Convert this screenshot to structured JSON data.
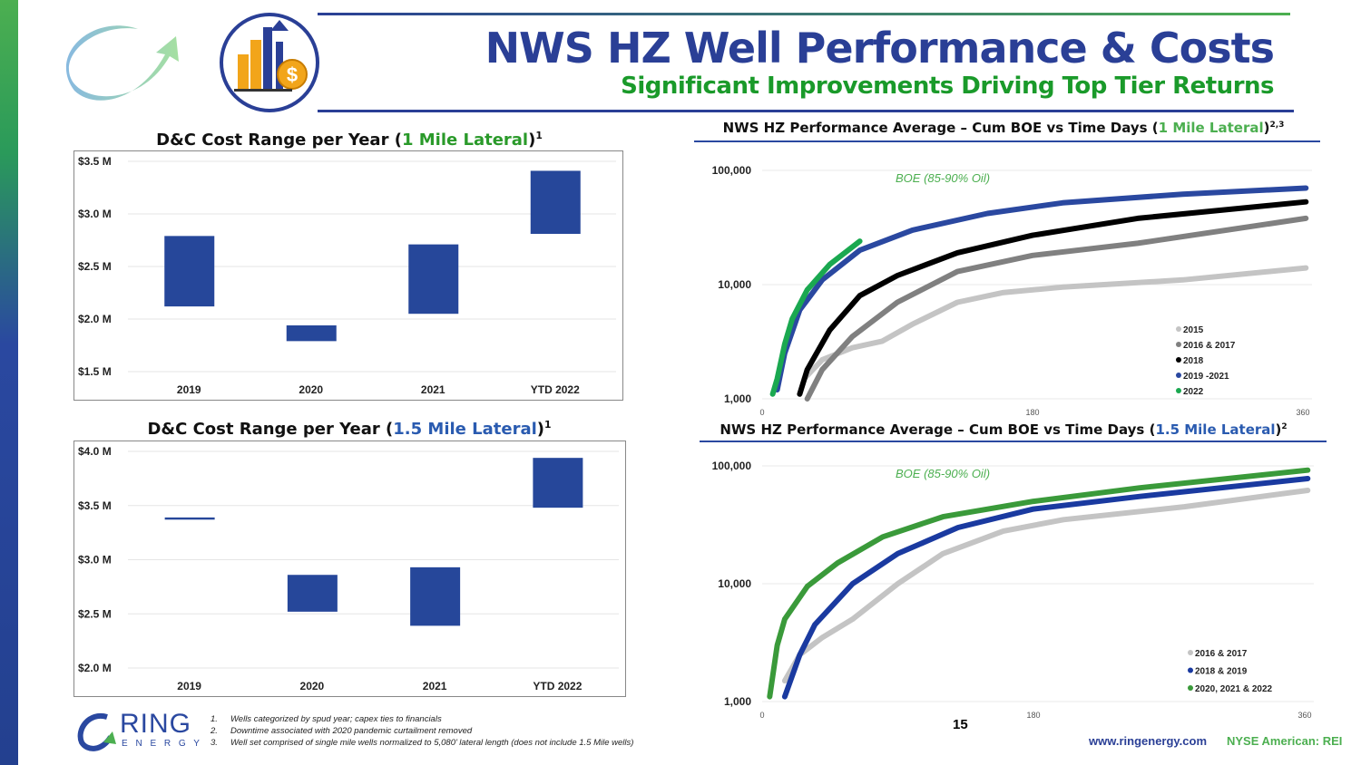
{
  "header": {
    "title": "NWS HZ Well Performance & Costs",
    "subtitle": "Significant Improvements Driving Top Tier Returns"
  },
  "colors": {
    "bar": "#26479a",
    "title": "#2a3f96",
    "green": "#1a9a2a"
  },
  "chart_data": [
    {
      "type": "bar",
      "subtype": "floating-range",
      "title": "D&C Cost Range per Year (1 Mile Lateral)1",
      "title_pre": "D&C Cost Range per Year (",
      "title_hl": "1 Mile Lateral",
      "title_post": ")",
      "title_sup": "1",
      "categories": [
        "2019",
        "2020",
        "2021",
        "YTD 2022"
      ],
      "ranges": [
        [
          2.12,
          2.79
        ],
        [
          1.79,
          1.94
        ],
        [
          2.05,
          2.71
        ],
        [
          2.81,
          3.41
        ]
      ],
      "ylim": [
        1.5,
        3.5
      ],
      "yticks": [
        "$1.5 M",
        "$2.0 M",
        "$2.5 M",
        "$3.0 M",
        "$3.5 M"
      ],
      "grid": true
    },
    {
      "type": "bar",
      "subtype": "floating-range",
      "title": "D&C Cost Range per Year (1.5 Mile Lateral)1",
      "title_pre": "D&C Cost Range per Year (",
      "title_hl": "1.5 Mile Lateral",
      "title_post": ")",
      "title_sup": "1",
      "categories": [
        "2019",
        "2020",
        "2021",
        "YTD 2022"
      ],
      "ranges": [
        [
          3.37,
          3.39
        ],
        [
          2.52,
          2.86
        ],
        [
          2.39,
          2.93
        ],
        [
          3.48,
          3.94
        ]
      ],
      "ylim": [
        2.0,
        4.0
      ],
      "yticks": [
        "$2.0 M",
        "$2.5 M",
        "$3.0 M",
        "$3.5 M",
        "$4.0 M"
      ],
      "grid": true
    },
    {
      "type": "line",
      "scale": "log",
      "title_pre": "NWS HZ Performance Average – Cum BOE vs Time Days (",
      "title_hl": "1 Mile Lateral",
      "title_post": ")",
      "title_sup": "2,3",
      "annotation": "BOE (85-90% Oil)",
      "xlim": [
        0,
        360
      ],
      "xticks": [
        "0",
        "180",
        "360"
      ],
      "ylim": [
        1000,
        100000
      ],
      "yticks": [
        "1,000",
        "10,000",
        "100,000"
      ],
      "legend": "bottom-right",
      "grid": true,
      "series": [
        {
          "name": "2015",
          "color": "#c4c4c4",
          "points": [
            [
              28,
              1500
            ],
            [
              40,
              2200
            ],
            [
              60,
              2800
            ],
            [
              80,
              3200
            ],
            [
              100,
              4500
            ],
            [
              130,
              7000
            ],
            [
              160,
              8500
            ],
            [
              200,
              9500
            ],
            [
              280,
              11000
            ],
            [
              362,
              14000
            ]
          ]
        },
        {
          "name": "2016 & 2017",
          "color": "#808080",
          "points": [
            [
              30,
              1000
            ],
            [
              40,
              1800
            ],
            [
              60,
              3500
            ],
            [
              90,
              7000
            ],
            [
              130,
              13000
            ],
            [
              180,
              18000
            ],
            [
              250,
              23000
            ],
            [
              362,
              38000
            ]
          ]
        },
        {
          "name": "2018",
          "color": "#000000",
          "points": [
            [
              25,
              1100
            ],
            [
              30,
              1800
            ],
            [
              45,
              4000
            ],
            [
              65,
              8000
            ],
            [
              90,
              12000
            ],
            [
              130,
              19000
            ],
            [
              180,
              27000
            ],
            [
              250,
              38000
            ],
            [
              362,
              53000
            ]
          ]
        },
        {
          "name": "2019 -2021",
          "color": "#2a48a0",
          "points": [
            [
              10,
              1200
            ],
            [
              15,
              2500
            ],
            [
              25,
              6000
            ],
            [
              40,
              11000
            ],
            [
              65,
              20000
            ],
            [
              100,
              30000
            ],
            [
              150,
              42000
            ],
            [
              200,
              52000
            ],
            [
              280,
              62000
            ],
            [
              362,
              70000
            ]
          ]
        },
        {
          "name": "2022",
          "color": "#1aa850",
          "points": [
            [
              7,
              1100
            ],
            [
              10,
              1500
            ],
            [
              15,
              3000
            ],
            [
              20,
              5000
            ],
            [
              30,
              9000
            ],
            [
              45,
              15000
            ],
            [
              65,
              24000
            ]
          ]
        }
      ]
    },
    {
      "type": "line",
      "scale": "log",
      "title_pre": "NWS HZ Performance Average – Cum BOE vs Time Days (",
      "title_hl": "1.5 Mile Lateral",
      "title_post": ")",
      "title_sup": "2",
      "annotation": "BOE (85-90% Oil)",
      "xlim": [
        0,
        360
      ],
      "xticks": [
        "0",
        "180",
        "360"
      ],
      "ylim": [
        1000,
        100000
      ],
      "yticks": [
        "1,000",
        "10,000",
        "100,000"
      ],
      "legend": "bottom-right",
      "grid": true,
      "series": [
        {
          "name": "2016 & 2017",
          "color": "#c4c4c4",
          "points": [
            [
              15,
              1500
            ],
            [
              25,
              2500
            ],
            [
              40,
              3500
            ],
            [
              60,
              5000
            ],
            [
              90,
              10000
            ],
            [
              120,
              18000
            ],
            [
              160,
              28000
            ],
            [
              200,
              35000
            ],
            [
              280,
              45000
            ],
            [
              362,
              62000
            ]
          ]
        },
        {
          "name": "2018 & 2019",
          "color": "#1a3aa0",
          "points": [
            [
              15,
              1100
            ],
            [
              25,
              2500
            ],
            [
              35,
              4500
            ],
            [
              60,
              10000
            ],
            [
              90,
              18000
            ],
            [
              130,
              30000
            ],
            [
              180,
              43000
            ],
            [
              250,
              55000
            ],
            [
              362,
              78000
            ]
          ]
        },
        {
          "name": "2020, 2021 & 2022",
          "color": "#3a9a3a",
          "points": [
            [
              5,
              1100
            ],
            [
              10,
              3000
            ],
            [
              15,
              5000
            ],
            [
              30,
              9500
            ],
            [
              50,
              15000
            ],
            [
              80,
              25000
            ],
            [
              120,
              37000
            ],
            [
              180,
              50000
            ],
            [
              250,
              65000
            ],
            [
              362,
              92000
            ]
          ]
        }
      ]
    }
  ],
  "footnotes": [
    "1.",
    "Wells categorized by spud year; capex ties to  financials",
    "2.",
    "Downtime associated with 2020 pandemic curtailment removed",
    "3.",
    "Well set comprised of single mile wells normalized to 5,080’ lateral length (does not include 1.5 Mile wells)"
  ],
  "page_number": "15",
  "footer": {
    "website": "www.ringenergy.com",
    "ticker": "NYSE American: REI"
  },
  "logo": {
    "ring": "RING",
    "energy": "E N E R G Y"
  }
}
